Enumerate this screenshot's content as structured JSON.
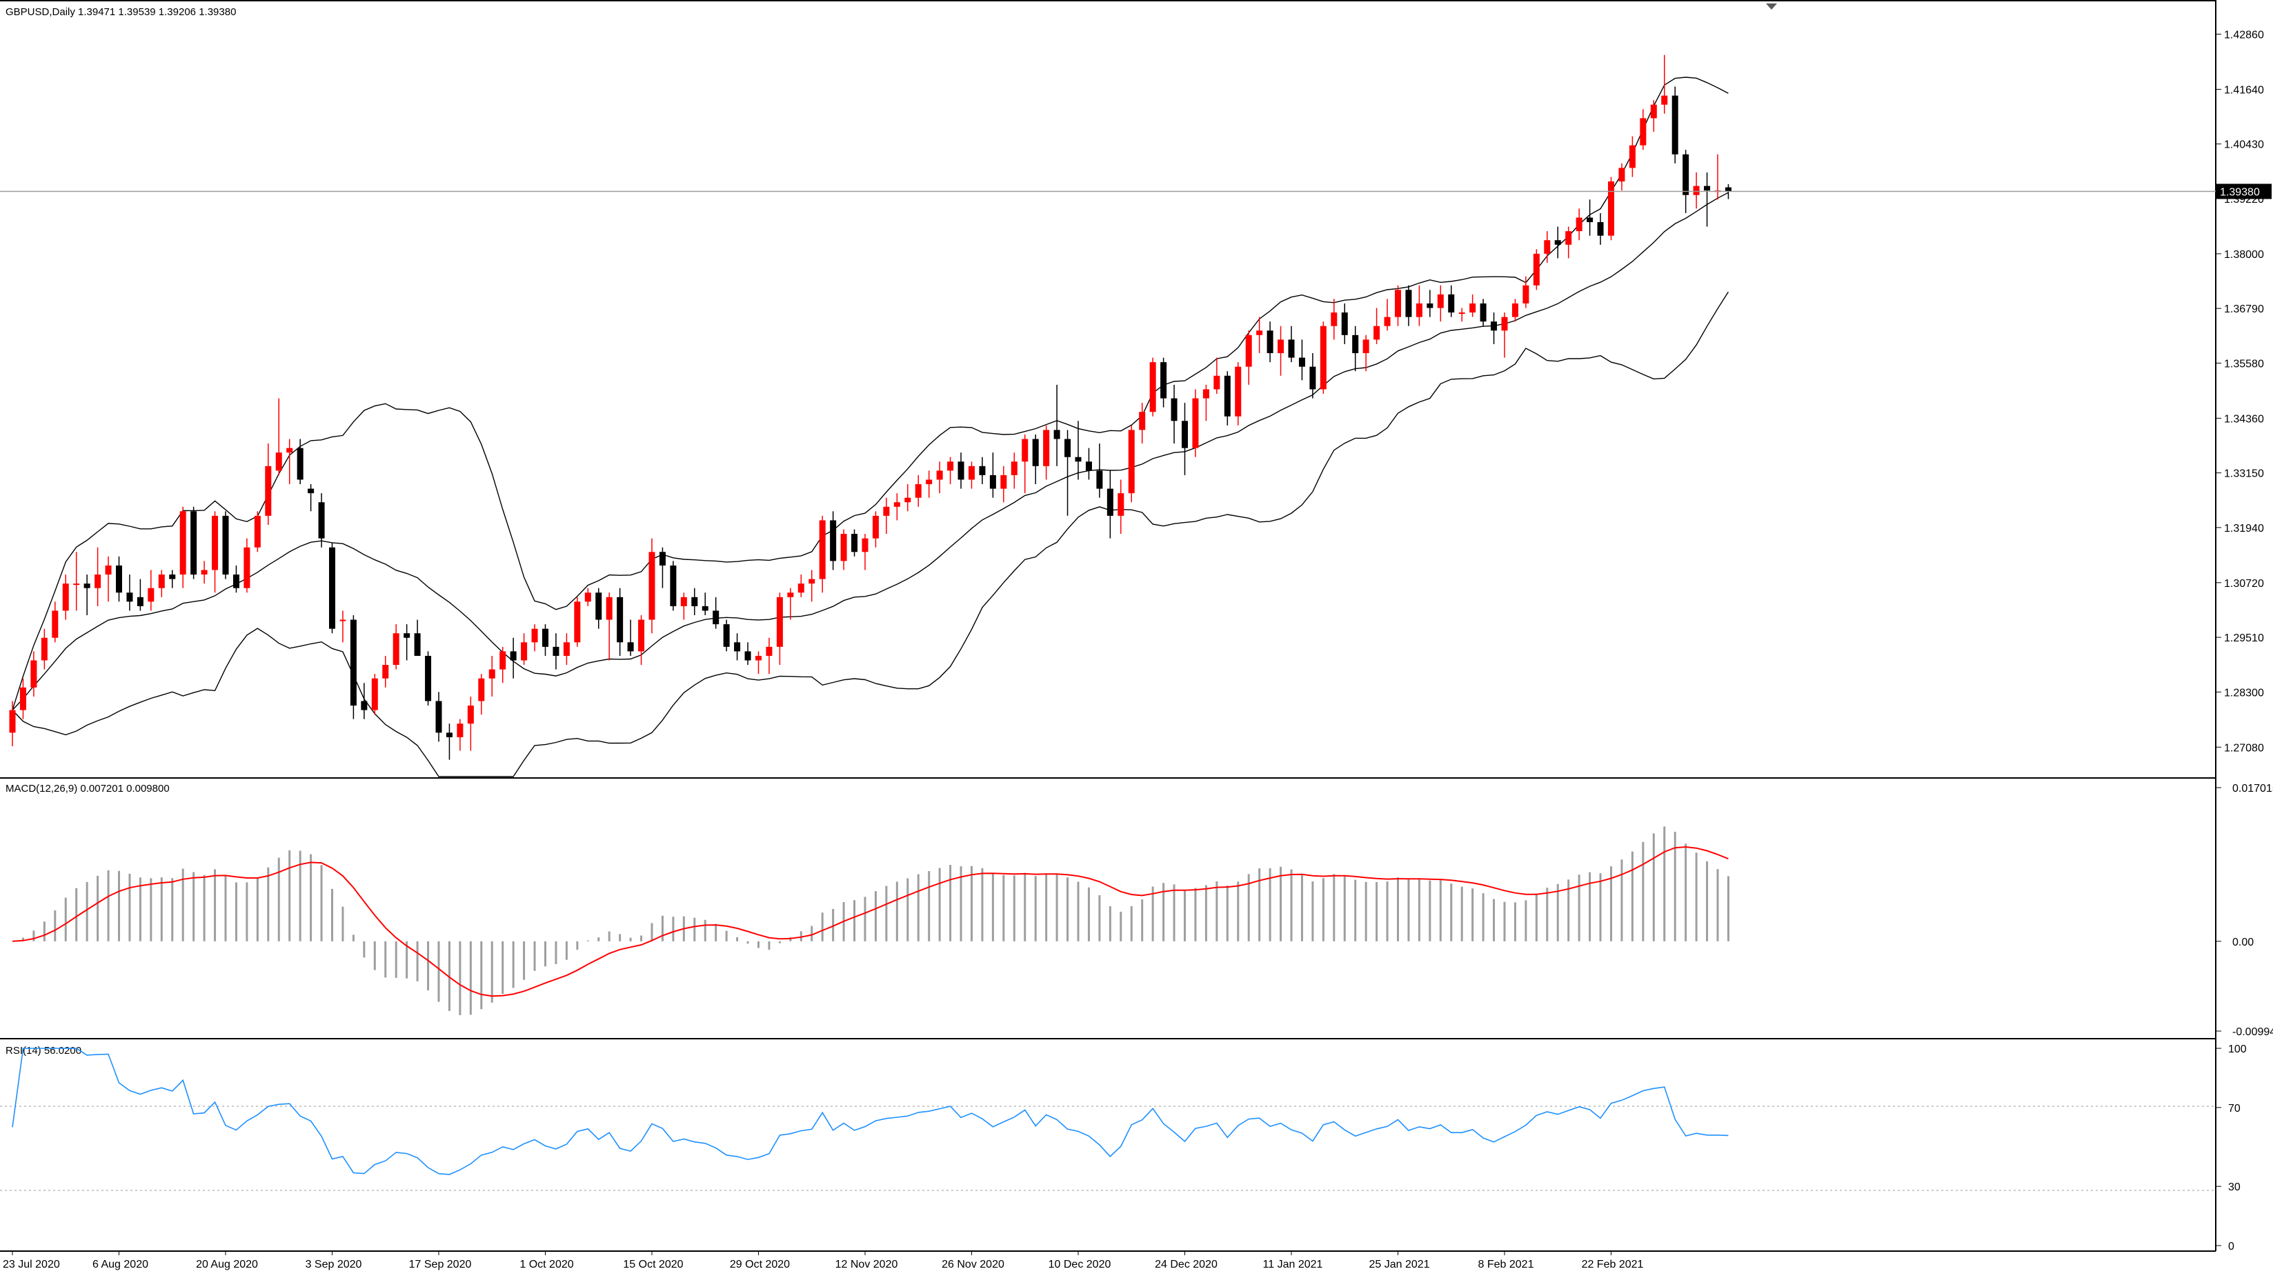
{
  "symbol_header": "GBPUSD,Daily  1.39471 1.39539 1.39206 1.39380",
  "last_price_tag": "1.39380",
  "colors": {
    "bull": "#ff0000",
    "bear": "#000000",
    "bands": "#000000",
    "macd_hist": "#9e9e9e",
    "macd_signal": "#ff0000",
    "rsi": "#1e90ff",
    "grid": "#000000"
  },
  "main_panel": {
    "y_ticks": [
      "1.42860",
      "1.41640",
      "1.40430",
      "1.39220",
      "1.38000",
      "1.36790",
      "1.35580",
      "1.34360",
      "1.33150",
      "1.31940",
      "1.30720",
      "1.29510",
      "1.28300",
      "1.27080"
    ]
  },
  "macd_panel": {
    "label": "MACD(12,26,9) 0.007201 0.009800",
    "y_ticks": [
      "0.017015",
      "0.00",
      "-0.009942"
    ]
  },
  "rsi_panel": {
    "label": "RSI(14) 56.0200",
    "y_ticks": [
      "100",
      "70",
      "30",
      "0"
    ]
  },
  "x_ticks": [
    "23 Jul 2020",
    "6 Aug 2020",
    "20 Aug 2020",
    "3 Sep 2020",
    "17 Sep 2020",
    "1 Oct 2020",
    "15 Oct 2020",
    "29 Oct 2020",
    "12 Nov 2020",
    "26 Nov 2020",
    "10 Dec 2020",
    "24 Dec 2020",
    "11 Jan 2021",
    "25 Jan 2021",
    "8 Feb 2021",
    "22 Feb 2021"
  ],
  "chart_data": {
    "type": "candlestick",
    "ylim": [
      1.2655,
      1.4325
    ],
    "last_close": 1.3938,
    "candles": [
      {
        "o": 1.274,
        "h": 1.281,
        "l": 1.271,
        "c": 1.279
      },
      {
        "o": 1.279,
        "h": 1.286,
        "l": 1.277,
        "c": 1.284
      },
      {
        "o": 1.284,
        "h": 1.292,
        "l": 1.282,
        "c": 1.29
      },
      {
        "o": 1.29,
        "h": 1.297,
        "l": 1.288,
        "c": 1.295
      },
      {
        "o": 1.295,
        "h": 1.303,
        "l": 1.294,
        "c": 1.301
      },
      {
        "o": 1.301,
        "h": 1.309,
        "l": 1.299,
        "c": 1.307
      },
      {
        "o": 1.307,
        "h": 1.314,
        "l": 1.301,
        "c": 1.307
      },
      {
        "o": 1.307,
        "h": 1.309,
        "l": 1.3,
        "c": 1.306
      },
      {
        "o": 1.306,
        "h": 1.315,
        "l": 1.302,
        "c": 1.309
      },
      {
        "o": 1.309,
        "h": 1.313,
        "l": 1.303,
        "c": 1.311
      },
      {
        "o": 1.311,
        "h": 1.313,
        "l": 1.303,
        "c": 1.305
      },
      {
        "o": 1.305,
        "h": 1.309,
        "l": 1.301,
        "c": 1.303
      },
      {
        "o": 1.304,
        "h": 1.308,
        "l": 1.301,
        "c": 1.302
      },
      {
        "o": 1.303,
        "h": 1.31,
        "l": 1.301,
        "c": 1.306
      },
      {
        "o": 1.306,
        "h": 1.31,
        "l": 1.304,
        "c": 1.309
      },
      {
        "o": 1.309,
        "h": 1.31,
        "l": 1.306,
        "c": 1.308
      },
      {
        "o": 1.309,
        "h": 1.324,
        "l": 1.306,
        "c": 1.323
      },
      {
        "o": 1.323,
        "h": 1.324,
        "l": 1.308,
        "c": 1.309
      },
      {
        "o": 1.309,
        "h": 1.312,
        "l": 1.307,
        "c": 1.31
      },
      {
        "o": 1.31,
        "h": 1.323,
        "l": 1.305,
        "c": 1.322
      },
      {
        "o": 1.322,
        "h": 1.323,
        "l": 1.308,
        "c": 1.309
      },
      {
        "o": 1.309,
        "h": 1.311,
        "l": 1.305,
        "c": 1.306
      },
      {
        "o": 1.306,
        "h": 1.317,
        "l": 1.305,
        "c": 1.315
      },
      {
        "o": 1.315,
        "h": 1.323,
        "l": 1.314,
        "c": 1.322
      },
      {
        "o": 1.322,
        "h": 1.338,
        "l": 1.32,
        "c": 1.333
      },
      {
        "o": 1.332,
        "h": 1.348,
        "l": 1.331,
        "c": 1.336
      },
      {
        "o": 1.336,
        "h": 1.339,
        "l": 1.329,
        "c": 1.337
      },
      {
        "o": 1.337,
        "h": 1.339,
        "l": 1.329,
        "c": 1.33
      },
      {
        "o": 1.328,
        "h": 1.329,
        "l": 1.323,
        "c": 1.327
      },
      {
        "o": 1.325,
        "h": 1.327,
        "l": 1.315,
        "c": 1.317
      },
      {
        "o": 1.315,
        "h": 1.316,
        "l": 1.296,
        "c": 1.297
      },
      {
        "o": 1.299,
        "h": 1.301,
        "l": 1.294,
        "c": 1.299
      },
      {
        "o": 1.299,
        "h": 1.3,
        "l": 1.277,
        "c": 1.28
      },
      {
        "o": 1.281,
        "h": 1.285,
        "l": 1.277,
        "c": 1.279
      },
      {
        "o": 1.279,
        "h": 1.287,
        "l": 1.278,
        "c": 1.286
      },
      {
        "o": 1.286,
        "h": 1.291,
        "l": 1.284,
        "c": 1.289
      },
      {
        "o": 1.289,
        "h": 1.298,
        "l": 1.288,
        "c": 1.296
      },
      {
        "o": 1.296,
        "h": 1.298,
        "l": 1.29,
        "c": 1.295
      },
      {
        "o": 1.296,
        "h": 1.299,
        "l": 1.291,
        "c": 1.291
      },
      {
        "o": 1.291,
        "h": 1.292,
        "l": 1.28,
        "c": 1.281
      },
      {
        "o": 1.281,
        "h": 1.283,
        "l": 1.272,
        "c": 1.274
      },
      {
        "o": 1.274,
        "h": 1.276,
        "l": 1.268,
        "c": 1.273
      },
      {
        "o": 1.273,
        "h": 1.277,
        "l": 1.27,
        "c": 1.276
      },
      {
        "o": 1.276,
        "h": 1.282,
        "l": 1.27,
        "c": 1.28
      },
      {
        "o": 1.281,
        "h": 1.287,
        "l": 1.278,
        "c": 1.286
      },
      {
        "o": 1.286,
        "h": 1.291,
        "l": 1.282,
        "c": 1.288
      },
      {
        "o": 1.288,
        "h": 1.293,
        "l": 1.285,
        "c": 1.292
      },
      {
        "o": 1.292,
        "h": 1.295,
        "l": 1.286,
        "c": 1.29
      },
      {
        "o": 1.29,
        "h": 1.296,
        "l": 1.289,
        "c": 1.294
      },
      {
        "o": 1.294,
        "h": 1.298,
        "l": 1.292,
        "c": 1.297
      },
      {
        "o": 1.297,
        "h": 1.298,
        "l": 1.291,
        "c": 1.293
      },
      {
        "o": 1.293,
        "h": 1.296,
        "l": 1.288,
        "c": 1.291
      },
      {
        "o": 1.291,
        "h": 1.296,
        "l": 1.289,
        "c": 1.294
      },
      {
        "o": 1.294,
        "h": 1.304,
        "l": 1.293,
        "c": 1.303
      },
      {
        "o": 1.303,
        "h": 1.306,
        "l": 1.302,
        "c": 1.305
      },
      {
        "o": 1.305,
        "h": 1.306,
        "l": 1.297,
        "c": 1.299
      },
      {
        "o": 1.299,
        "h": 1.305,
        "l": 1.29,
        "c": 1.304
      },
      {
        "o": 1.304,
        "h": 1.306,
        "l": 1.291,
        "c": 1.294
      },
      {
        "o": 1.294,
        "h": 1.299,
        "l": 1.291,
        "c": 1.292
      },
      {
        "o": 1.292,
        "h": 1.3,
        "l": 1.289,
        "c": 1.299
      },
      {
        "o": 1.299,
        "h": 1.317,
        "l": 1.296,
        "c": 1.314
      },
      {
        "o": 1.314,
        "h": 1.315,
        "l": 1.306,
        "c": 1.311
      },
      {
        "o": 1.311,
        "h": 1.312,
        "l": 1.301,
        "c": 1.302
      },
      {
        "o": 1.302,
        "h": 1.305,
        "l": 1.299,
        "c": 1.304
      },
      {
        "o": 1.304,
        "h": 1.306,
        "l": 1.3,
        "c": 1.302
      },
      {
        "o": 1.302,
        "h": 1.305,
        "l": 1.3,
        "c": 1.301
      },
      {
        "o": 1.301,
        "h": 1.304,
        "l": 1.297,
        "c": 1.298
      },
      {
        "o": 1.298,
        "h": 1.299,
        "l": 1.292,
        "c": 1.293
      },
      {
        "o": 1.294,
        "h": 1.296,
        "l": 1.29,
        "c": 1.292
      },
      {
        "o": 1.292,
        "h": 1.294,
        "l": 1.289,
        "c": 1.29
      },
      {
        "o": 1.29,
        "h": 1.292,
        "l": 1.287,
        "c": 1.291
      },
      {
        "o": 1.291,
        "h": 1.295,
        "l": 1.287,
        "c": 1.293
      },
      {
        "o": 1.293,
        "h": 1.305,
        "l": 1.289,
        "c": 1.304
      },
      {
        "o": 1.304,
        "h": 1.306,
        "l": 1.299,
        "c": 1.305
      },
      {
        "o": 1.305,
        "h": 1.309,
        "l": 1.304,
        "c": 1.307
      },
      {
        "o": 1.307,
        "h": 1.31,
        "l": 1.303,
        "c": 1.308
      },
      {
        "o": 1.308,
        "h": 1.322,
        "l": 1.305,
        "c": 1.321
      },
      {
        "o": 1.321,
        "h": 1.323,
        "l": 1.31,
        "c": 1.312
      },
      {
        "o": 1.312,
        "h": 1.319,
        "l": 1.31,
        "c": 1.318
      },
      {
        "o": 1.318,
        "h": 1.319,
        "l": 1.313,
        "c": 1.314
      },
      {
        "o": 1.314,
        "h": 1.318,
        "l": 1.31,
        "c": 1.317
      },
      {
        "o": 1.317,
        "h": 1.323,
        "l": 1.315,
        "c": 1.322
      },
      {
        "o": 1.322,
        "h": 1.326,
        "l": 1.318,
        "c": 1.324
      },
      {
        "o": 1.324,
        "h": 1.327,
        "l": 1.321,
        "c": 1.325
      },
      {
        "o": 1.325,
        "h": 1.329,
        "l": 1.323,
        "c": 1.326
      },
      {
        "o": 1.326,
        "h": 1.331,
        "l": 1.324,
        "c": 1.329
      },
      {
        "o": 1.329,
        "h": 1.332,
        "l": 1.326,
        "c": 1.33
      },
      {
        "o": 1.33,
        "h": 1.334,
        "l": 1.327,
        "c": 1.332
      },
      {
        "o": 1.332,
        "h": 1.335,
        "l": 1.329,
        "c": 1.334
      },
      {
        "o": 1.334,
        "h": 1.336,
        "l": 1.328,
        "c": 1.33
      },
      {
        "o": 1.33,
        "h": 1.334,
        "l": 1.328,
        "c": 1.333
      },
      {
        "o": 1.333,
        "h": 1.335,
        "l": 1.329,
        "c": 1.331
      },
      {
        "o": 1.331,
        "h": 1.336,
        "l": 1.326,
        "c": 1.328
      },
      {
        "o": 1.328,
        "h": 1.333,
        "l": 1.325,
        "c": 1.331
      },
      {
        "o": 1.331,
        "h": 1.336,
        "l": 1.328,
        "c": 1.334
      },
      {
        "o": 1.334,
        "h": 1.34,
        "l": 1.327,
        "c": 1.339
      },
      {
        "o": 1.339,
        "h": 1.34,
        "l": 1.329,
        "c": 1.333
      },
      {
        "o": 1.333,
        "h": 1.342,
        "l": 1.33,
        "c": 1.341
      },
      {
        "o": 1.341,
        "h": 1.351,
        "l": 1.333,
        "c": 1.339
      },
      {
        "o": 1.339,
        "h": 1.341,
        "l": 1.322,
        "c": 1.335
      },
      {
        "o": 1.335,
        "h": 1.343,
        "l": 1.33,
        "c": 1.334
      },
      {
        "o": 1.334,
        "h": 1.337,
        "l": 1.33,
        "c": 1.332
      },
      {
        "o": 1.332,
        "h": 1.338,
        "l": 1.326,
        "c": 1.328
      },
      {
        "o": 1.328,
        "h": 1.332,
        "l": 1.317,
        "c": 1.322
      },
      {
        "o": 1.322,
        "h": 1.33,
        "l": 1.318,
        "c": 1.327
      },
      {
        "o": 1.327,
        "h": 1.342,
        "l": 1.325,
        "c": 1.341
      },
      {
        "o": 1.341,
        "h": 1.347,
        "l": 1.338,
        "c": 1.345
      },
      {
        "o": 1.345,
        "h": 1.357,
        "l": 1.344,
        "c": 1.356
      },
      {
        "o": 1.356,
        "h": 1.357,
        "l": 1.346,
        "c": 1.348
      },
      {
        "o": 1.348,
        "h": 1.351,
        "l": 1.338,
        "c": 1.343
      },
      {
        "o": 1.343,
        "h": 1.347,
        "l": 1.331,
        "c": 1.337
      },
      {
        "o": 1.337,
        "h": 1.35,
        "l": 1.335,
        "c": 1.348
      },
      {
        "o": 1.348,
        "h": 1.351,
        "l": 1.343,
        "c": 1.35
      },
      {
        "o": 1.35,
        "h": 1.357,
        "l": 1.349,
        "c": 1.353
      },
      {
        "o": 1.353,
        "h": 1.354,
        "l": 1.342,
        "c": 1.344
      },
      {
        "o": 1.344,
        "h": 1.356,
        "l": 1.342,
        "c": 1.355
      },
      {
        "o": 1.355,
        "h": 1.363,
        "l": 1.351,
        "c": 1.362
      },
      {
        "o": 1.362,
        "h": 1.366,
        "l": 1.358,
        "c": 1.363
      },
      {
        "o": 1.363,
        "h": 1.365,
        "l": 1.356,
        "c": 1.358
      },
      {
        "o": 1.358,
        "h": 1.364,
        "l": 1.353,
        "c": 1.361
      },
      {
        "o": 1.361,
        "h": 1.364,
        "l": 1.356,
        "c": 1.357
      },
      {
        "o": 1.357,
        "h": 1.361,
        "l": 1.352,
        "c": 1.355
      },
      {
        "o": 1.355,
        "h": 1.358,
        "l": 1.348,
        "c": 1.35
      },
      {
        "o": 1.35,
        "h": 1.365,
        "l": 1.349,
        "c": 1.364
      },
      {
        "o": 1.364,
        "h": 1.37,
        "l": 1.361,
        "c": 1.367
      },
      {
        "o": 1.367,
        "h": 1.369,
        "l": 1.36,
        "c": 1.362
      },
      {
        "o": 1.362,
        "h": 1.364,
        "l": 1.354,
        "c": 1.358
      },
      {
        "o": 1.358,
        "h": 1.362,
        "l": 1.354,
        "c": 1.361
      },
      {
        "o": 1.361,
        "h": 1.368,
        "l": 1.36,
        "c": 1.364
      },
      {
        "o": 1.364,
        "h": 1.37,
        "l": 1.363,
        "c": 1.366
      },
      {
        "o": 1.366,
        "h": 1.373,
        "l": 1.364,
        "c": 1.372
      },
      {
        "o": 1.372,
        "h": 1.373,
        "l": 1.364,
        "c": 1.366
      },
      {
        "o": 1.366,
        "h": 1.373,
        "l": 1.364,
        "c": 1.369
      },
      {
        "o": 1.369,
        "h": 1.372,
        "l": 1.366,
        "c": 1.368
      },
      {
        "o": 1.368,
        "h": 1.373,
        "l": 1.365,
        "c": 1.371
      },
      {
        "o": 1.371,
        "h": 1.373,
        "l": 1.366,
        "c": 1.367
      },
      {
        "o": 1.367,
        "h": 1.368,
        "l": 1.365,
        "c": 1.367
      },
      {
        "o": 1.367,
        "h": 1.371,
        "l": 1.366,
        "c": 1.369
      },
      {
        "o": 1.369,
        "h": 1.37,
        "l": 1.364,
        "c": 1.365
      },
      {
        "o": 1.365,
        "h": 1.367,
        "l": 1.36,
        "c": 1.363
      },
      {
        "o": 1.363,
        "h": 1.367,
        "l": 1.357,
        "c": 1.366
      },
      {
        "o": 1.366,
        "h": 1.37,
        "l": 1.365,
        "c": 1.369
      },
      {
        "o": 1.369,
        "h": 1.375,
        "l": 1.368,
        "c": 1.373
      },
      {
        "o": 1.373,
        "h": 1.381,
        "l": 1.372,
        "c": 1.38
      },
      {
        "o": 1.38,
        "h": 1.385,
        "l": 1.378,
        "c": 1.383
      },
      {
        "o": 1.383,
        "h": 1.386,
        "l": 1.379,
        "c": 1.382
      },
      {
        "o": 1.382,
        "h": 1.386,
        "l": 1.379,
        "c": 1.385
      },
      {
        "o": 1.385,
        "h": 1.39,
        "l": 1.383,
        "c": 1.388
      },
      {
        "o": 1.388,
        "h": 1.392,
        "l": 1.384,
        "c": 1.387
      },
      {
        "o": 1.387,
        "h": 1.389,
        "l": 1.382,
        "c": 1.384
      },
      {
        "o": 1.384,
        "h": 1.397,
        "l": 1.383,
        "c": 1.396
      },
      {
        "o": 1.396,
        "h": 1.4,
        "l": 1.394,
        "c": 1.399
      },
      {
        "o": 1.399,
        "h": 1.406,
        "l": 1.397,
        "c": 1.404
      },
      {
        "o": 1.404,
        "h": 1.412,
        "l": 1.403,
        "c": 1.41
      },
      {
        "o": 1.41,
        "h": 1.414,
        "l": 1.407,
        "c": 1.413
      },
      {
        "o": 1.413,
        "h": 1.424,
        "l": 1.411,
        "c": 1.415
      },
      {
        "o": 1.415,
        "h": 1.417,
        "l": 1.4,
        "c": 1.402
      },
      {
        "o": 1.402,
        "h": 1.403,
        "l": 1.389,
        "c": 1.393
      },
      {
        "o": 1.393,
        "h": 1.398,
        "l": 1.39,
        "c": 1.395
      },
      {
        "o": 1.395,
        "h": 1.398,
        "l": 1.386,
        "c": 1.394
      },
      {
        "o": 1.394,
        "h": 1.402,
        "l": 1.392,
        "c": 1.394
      },
      {
        "o": 1.3947,
        "h": 1.3954,
        "l": 1.3921,
        "c": 1.3938
      }
    ]
  }
}
